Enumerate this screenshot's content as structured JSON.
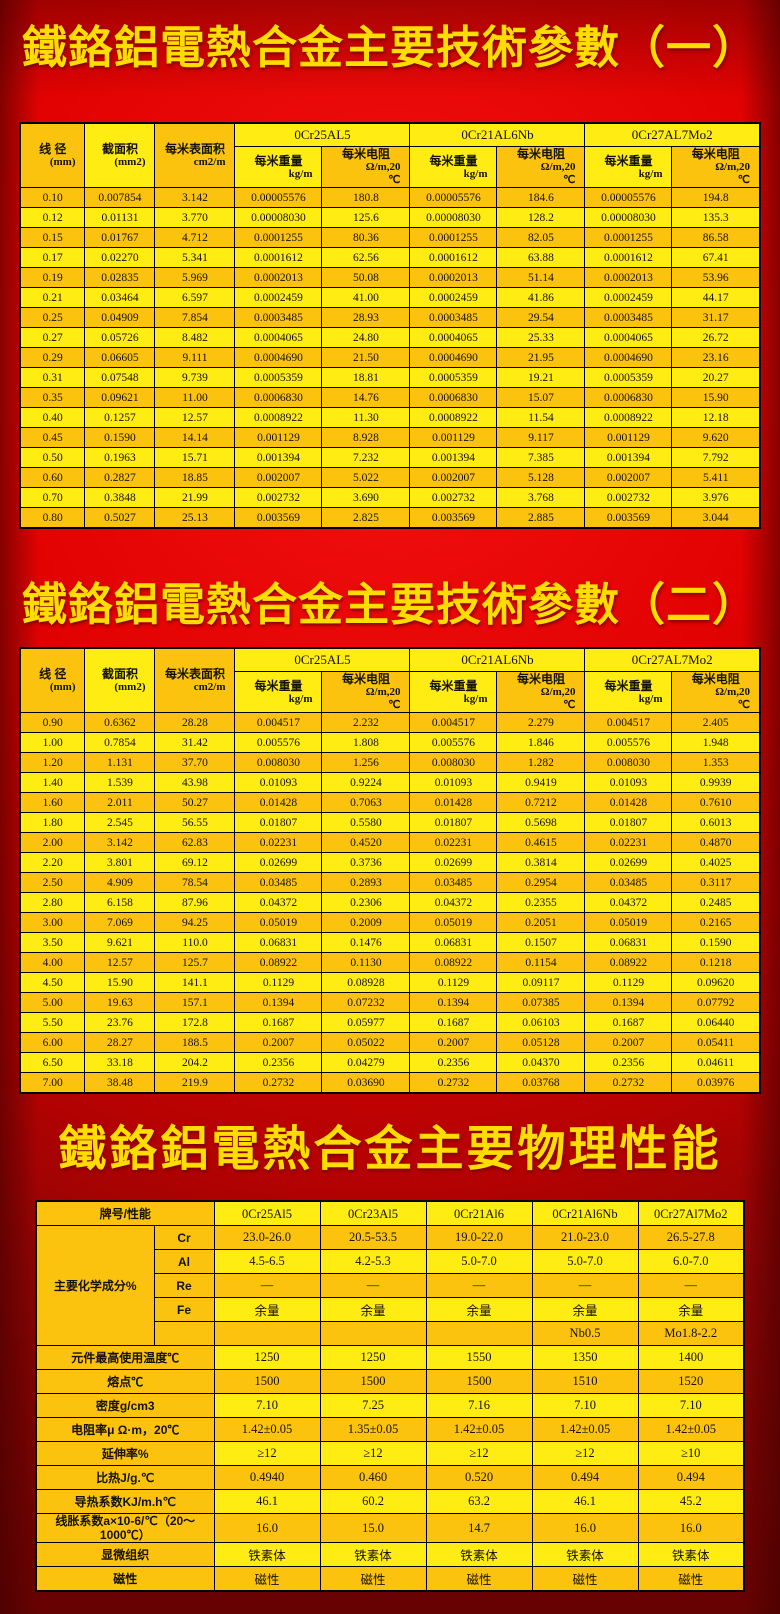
{
  "colors": {
    "background_red": "#e20202",
    "table_gold": "#fcc30e",
    "table_yellow": "#ffec12",
    "title_yellow": "#ffdd00",
    "text_dark": "#14120a"
  },
  "titles": {
    "t1": "鐵鉻鋁電熱合金主要技術參數（一）",
    "t2": "鐵鉻鋁電熱合金主要技術參數（二）",
    "t3": "鐵鉻鋁電熱合金主要物理性能"
  },
  "tech_tables": {
    "headers": {
      "diameter": "线 径",
      "diameter_unit": "(mm)",
      "area": "截面积",
      "area_unit": "(mm2)",
      "surface": "每米表面积",
      "surface_unit": "cm2/m",
      "weight": "每米重量",
      "weight_unit": "kg/m",
      "resistance": "每米电阻",
      "resistance_unit": "Ω/m,20",
      "resistance_unit2": "℃"
    },
    "alloys": [
      "0Cr25AL5",
      "0Cr21AL6Nb",
      "0Cr27AL7Mo2"
    ],
    "table1_rows": [
      [
        "0.10",
        "0.007854",
        "3.142",
        "0.00005576",
        "180.8",
        "0.00005576",
        "184.6",
        "0.00005576",
        "194.8"
      ],
      [
        "0.12",
        "0.01131",
        "3.770",
        "0.00008030",
        "125.6",
        "0.00008030",
        "128.2",
        "0.00008030",
        "135.3"
      ],
      [
        "0.15",
        "0.01767",
        "4.712",
        "0.0001255",
        "80.36",
        "0.0001255",
        "82.05",
        "0.0001255",
        "86.58"
      ],
      [
        "0.17",
        "0.02270",
        "5.341",
        "0.0001612",
        "62.56",
        "0.0001612",
        "63.88",
        "0.0001612",
        "67.41"
      ],
      [
        "0.19",
        "0.02835",
        "5.969",
        "0.0002013",
        "50.08",
        "0.0002013",
        "51.14",
        "0.0002013",
        "53.96"
      ],
      [
        "0.21",
        "0.03464",
        "6.597",
        "0.0002459",
        "41.00",
        "0.0002459",
        "41.86",
        "0.0002459",
        "44.17"
      ],
      [
        "0.25",
        "0.04909",
        "7.854",
        "0.0003485",
        "28.93",
        "0.0003485",
        "29.54",
        "0.0003485",
        "31.17"
      ],
      [
        "0.27",
        "0.05726",
        "8.482",
        "0.0004065",
        "24.80",
        "0.0004065",
        "25.33",
        "0.0004065",
        "26.72"
      ],
      [
        "0.29",
        "0.06605",
        "9.111",
        "0.0004690",
        "21.50",
        "0.0004690",
        "21.95",
        "0.0004690",
        "23.16"
      ],
      [
        "0.31",
        "0.07548",
        "9.739",
        "0.0005359",
        "18.81",
        "0.0005359",
        "19.21",
        "0.0005359",
        "20.27"
      ],
      [
        "0.35",
        "0.09621",
        "11.00",
        "0.0006830",
        "14.76",
        "0.0006830",
        "15.07",
        "0.0006830",
        "15.90"
      ],
      [
        "0.40",
        "0.1257",
        "12.57",
        "0.0008922",
        "11.30",
        "0.0008922",
        "11.54",
        "0.0008922",
        "12.18"
      ],
      [
        "0.45",
        "0.1590",
        "14.14",
        "0.001129",
        "8.928",
        "0.001129",
        "9.117",
        "0.001129",
        "9.620"
      ],
      [
        "0.50",
        "0.1963",
        "15.71",
        "0.001394",
        "7.232",
        "0.001394",
        "7.385",
        "0.001394",
        "7.792"
      ],
      [
        "0.60",
        "0.2827",
        "18.85",
        "0.002007",
        "5.022",
        "0.002007",
        "5.128",
        "0.002007",
        "5.411"
      ],
      [
        "0.70",
        "0.3848",
        "21.99",
        "0.002732",
        "3.690",
        "0.002732",
        "3.768",
        "0.002732",
        "3.976"
      ],
      [
        "0.80",
        "0.5027",
        "25.13",
        "0.003569",
        "2.825",
        "0.003569",
        "2.885",
        "0.003569",
        "3.044"
      ]
    ],
    "table2_rows": [
      [
        "0.90",
        "0.6362",
        "28.28",
        "0.004517",
        "2.232",
        "0.004517",
        "2.279",
        "0.004517",
        "2.405"
      ],
      [
        "1.00",
        "0.7854",
        "31.42",
        "0.005576",
        "1.808",
        "0.005576",
        "1.846",
        "0.005576",
        "1.948"
      ],
      [
        "1.20",
        "1.131",
        "37.70",
        "0.008030",
        "1.256",
        "0.008030",
        "1.282",
        "0.008030",
        "1.353"
      ],
      [
        "1.40",
        "1.539",
        "43.98",
        "0.01093",
        "0.9224",
        "0.01093",
        "0.9419",
        "0.01093",
        "0.9939"
      ],
      [
        "1.60",
        "2.011",
        "50.27",
        "0.01428",
        "0.7063",
        "0.01428",
        "0.7212",
        "0.01428",
        "0.7610"
      ],
      [
        "1.80",
        "2.545",
        "56.55",
        "0.01807",
        "0.5580",
        "0.01807",
        "0.5698",
        "0.01807",
        "0.6013"
      ],
      [
        "2.00",
        "3.142",
        "62.83",
        "0.02231",
        "0.4520",
        "0.02231",
        "0.4615",
        "0.02231",
        "0.4870"
      ],
      [
        "2.20",
        "3.801",
        "69.12",
        "0.02699",
        "0.3736",
        "0.02699",
        "0.3814",
        "0.02699",
        "0.4025"
      ],
      [
        "2.50",
        "4.909",
        "78.54",
        "0.03485",
        "0.2893",
        "0.03485",
        "0.2954",
        "0.03485",
        "0.3117"
      ],
      [
        "2.80",
        "6.158",
        "87.96",
        "0.04372",
        "0.2306",
        "0.04372",
        "0.2355",
        "0.04372",
        "0.2485"
      ],
      [
        "3.00",
        "7.069",
        "94.25",
        "0.05019",
        "0.2009",
        "0.05019",
        "0.2051",
        "0.05019",
        "0.2165"
      ],
      [
        "3.50",
        "9.621",
        "110.0",
        "0.06831",
        "0.1476",
        "0.06831",
        "0.1507",
        "0.06831",
        "0.1590"
      ],
      [
        "4.00",
        "12.57",
        "125.7",
        "0.08922",
        "0.1130",
        "0.08922",
        "0.1154",
        "0.08922",
        "0.1218"
      ],
      [
        "4.50",
        "15.90",
        "141.1",
        "0.1129",
        "0.08928",
        "0.1129",
        "0.09117",
        "0.1129",
        "0.09620"
      ],
      [
        "5.00",
        "19.63",
        "157.1",
        "0.1394",
        "0.07232",
        "0.1394",
        "0.07385",
        "0.1394",
        "0.07792"
      ],
      [
        "5.50",
        "23.76",
        "172.8",
        "0.1687",
        "0.05977",
        "0.1687",
        "0.06103",
        "0.1687",
        "0.06440"
      ],
      [
        "6.00",
        "28.27",
        "188.5",
        "0.2007",
        "0.05022",
        "0.2007",
        "0.05128",
        "0.2007",
        "0.05411"
      ],
      [
        "6.50",
        "33.18",
        "204.2",
        "0.2356",
        "0.04279",
        "0.2356",
        "0.04370",
        "0.2356",
        "0.04611"
      ],
      [
        "7.00",
        "38.48",
        "219.9",
        "0.2732",
        "0.03690",
        "0.2732",
        "0.03768",
        "0.2732",
        "0.03976"
      ]
    ]
  },
  "physical_table": {
    "header_label": "牌号/性能",
    "alloys": [
      "0Cr25Al5",
      "0Cr23Al5",
      "0Cr21Al6",
      "0Cr21Al6Nb",
      "0Cr27Al7Mo2"
    ],
    "chemistry_label": "主要化学成分%",
    "chemistry_rows": [
      {
        "element": "Cr",
        "values": [
          "23.0-26.0",
          "20.5-53.5",
          "19.0-22.0",
          "21.0-23.0",
          "26.5-27.8"
        ]
      },
      {
        "element": "Al",
        "values": [
          "4.5-6.5",
          "4.2-5.3",
          "5.0-7.0",
          "5.0-7.0",
          "6.0-7.0"
        ]
      },
      {
        "element": "Re",
        "values": [
          "—",
          "—",
          "—",
          "—",
          "—"
        ]
      },
      {
        "element": "Fe",
        "values": [
          "余量",
          "余量",
          "余量",
          "余量",
          "余量"
        ]
      },
      {
        "element": "",
        "values": [
          "",
          "",
          "",
          "Nb0.5",
          "Mo1.8-2.2"
        ]
      }
    ],
    "property_rows": [
      {
        "label": "元件最高使用温度℃",
        "values": [
          "1250",
          "1250",
          "1550",
          "1350",
          "1400"
        ]
      },
      {
        "label": "熔点℃",
        "values": [
          "1500",
          "1500",
          "1500",
          "1510",
          "1520"
        ]
      },
      {
        "label": "密度g/cm3",
        "values": [
          "7.10",
          "7.25",
          "7.16",
          "7.10",
          "7.10"
        ]
      },
      {
        "label": "电阻率μ Ω·m，20℃",
        "values": [
          "1.42±0.05",
          "1.35±0.05",
          "1.42±0.05",
          "1.42±0.05",
          "1.42±0.05"
        ]
      },
      {
        "label": "延伸率%",
        "values": [
          "≥12",
          "≥12",
          "≥12",
          "≥12",
          "≥10"
        ]
      },
      {
        "label": "比热J/g.℃",
        "values": [
          "0.4940",
          "0.460",
          "0.520",
          "0.494",
          "0.494"
        ]
      },
      {
        "label": "导热系数KJ/m.h℃",
        "values": [
          "46.1",
          "60.2",
          "63.2",
          "46.1",
          "45.2"
        ]
      },
      {
        "label": "线胀系数a×10-6/℃（20～1000℃）",
        "values": [
          "16.0",
          "15.0",
          "14.7",
          "16.0",
          "16.0"
        ]
      },
      {
        "label": "显微组织",
        "values": [
          "铁素体",
          "铁素体",
          "铁素体",
          "铁素体",
          "铁素体"
        ]
      },
      {
        "label": "磁性",
        "values": [
          "磁性",
          "磁性",
          "磁性",
          "磁性",
          "磁性"
        ]
      }
    ]
  }
}
